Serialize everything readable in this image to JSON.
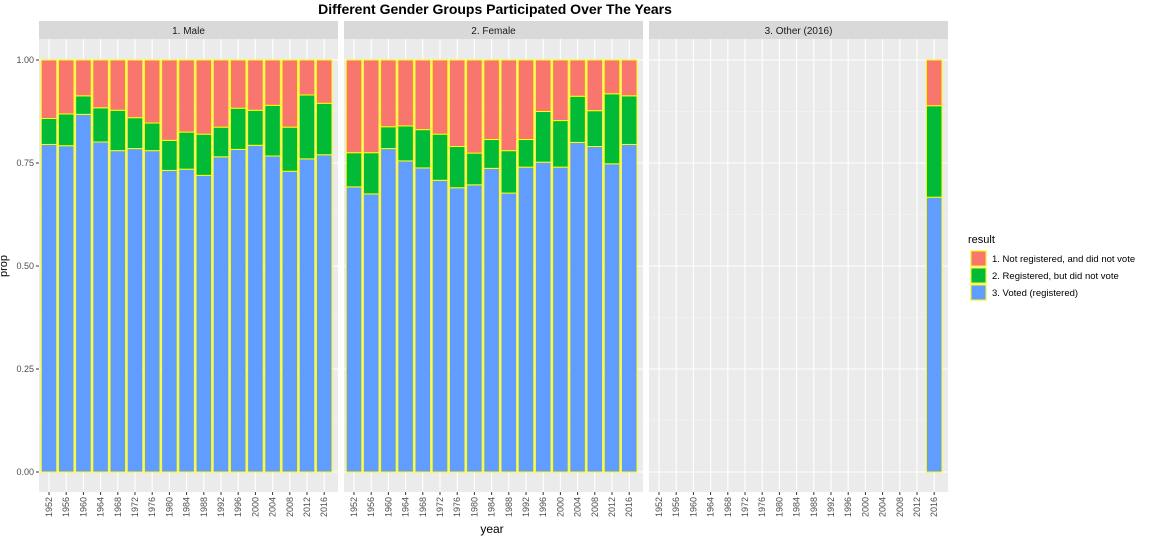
{
  "chart_data": {
    "type": "bar",
    "stacked": true,
    "title": "Different Gender Groups Participated Over The Years",
    "xlabel": "year",
    "ylabel": "prop",
    "ylim": [
      0,
      1
    ],
    "yticks": [
      "0.00",
      "0.25",
      "0.50",
      "0.75",
      "1.00"
    ],
    "categories": [
      "1952",
      "1956",
      "1960",
      "1964",
      "1968",
      "1972",
      "1976",
      "1980",
      "1984",
      "1988",
      "1992",
      "1996",
      "2000",
      "2004",
      "2008",
      "2012",
      "2016"
    ],
    "grid": true,
    "legend": {
      "title": "result",
      "position": "right",
      "entries": [
        {
          "label": "1. Not registered, and did not vote",
          "color": "#F8766D"
        },
        {
          "label": "2. Registered, but did not vote",
          "color": "#00BA38"
        },
        {
          "label": "3. Voted (registered)",
          "color": "#619CFF"
        }
      ]
    },
    "bar_outline_color": "#FFFF00",
    "panels": [
      {
        "label": "1. Male",
        "voted": [
          0.795,
          0.792,
          0.868,
          0.801,
          0.78,
          0.785,
          0.78,
          0.732,
          0.735,
          0.72,
          0.765,
          0.783,
          0.793,
          0.767,
          0.73,
          0.76,
          0.77
        ],
        "registered": [
          0.063,
          0.077,
          0.045,
          0.083,
          0.098,
          0.075,
          0.067,
          0.073,
          0.09,
          0.1,
          0.072,
          0.1,
          0.085,
          0.123,
          0.107,
          0.155,
          0.125
        ],
        "not_registered": [
          0.142,
          0.131,
          0.087,
          0.116,
          0.122,
          0.14,
          0.153,
          0.195,
          0.175,
          0.18,
          0.163,
          0.117,
          0.122,
          0.11,
          0.163,
          0.085,
          0.105
        ]
      },
      {
        "label": "2. Female",
        "voted": [
          0.692,
          0.675,
          0.785,
          0.755,
          0.738,
          0.708,
          0.69,
          0.697,
          0.737,
          0.677,
          0.74,
          0.752,
          0.74,
          0.8,
          0.79,
          0.748,
          0.795
        ],
        "registered": [
          0.083,
          0.1,
          0.053,
          0.085,
          0.093,
          0.112,
          0.1,
          0.077,
          0.07,
          0.103,
          0.067,
          0.123,
          0.113,
          0.112,
          0.087,
          0.17,
          0.118
        ],
        "not_registered": [
          0.225,
          0.225,
          0.162,
          0.16,
          0.169,
          0.18,
          0.21,
          0.226,
          0.193,
          0.22,
          0.193,
          0.125,
          0.147,
          0.088,
          0.123,
          0.082,
          0.087
        ]
      },
      {
        "label": "3. Other (2016)",
        "voted": [
          null,
          null,
          null,
          null,
          null,
          null,
          null,
          null,
          null,
          null,
          null,
          null,
          null,
          null,
          null,
          null,
          0.667
        ],
        "registered": [
          null,
          null,
          null,
          null,
          null,
          null,
          null,
          null,
          null,
          null,
          null,
          null,
          null,
          null,
          null,
          null,
          0.222
        ],
        "not_registered": [
          null,
          null,
          null,
          null,
          null,
          null,
          null,
          null,
          null,
          null,
          null,
          null,
          null,
          null,
          null,
          null,
          0.111
        ]
      }
    ]
  }
}
